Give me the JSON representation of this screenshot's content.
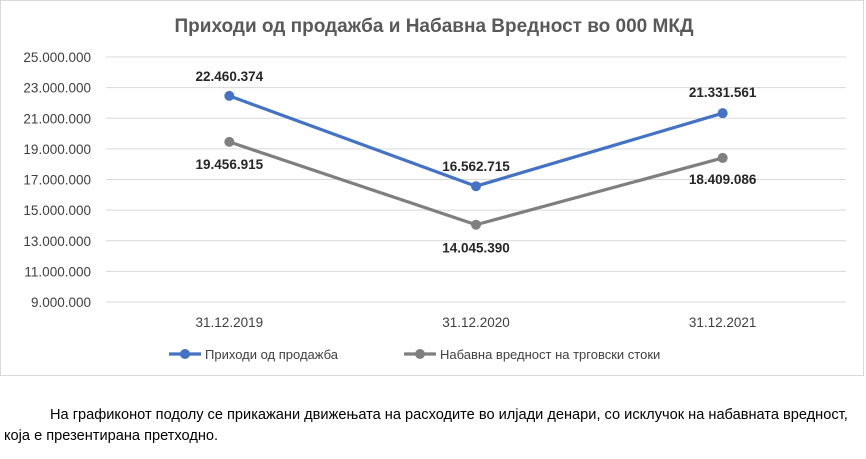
{
  "chart_data": {
    "type": "line",
    "title": "Приходи од продажба и Набавна Вредност во 000 МКД",
    "categories": [
      "31.12.2019",
      "31.12.2020",
      "31.12.2021"
    ],
    "series": [
      {
        "name": "Приходи од продажба",
        "color": "#4472C4",
        "values": [
          22460374,
          16562715,
          21331561
        ],
        "labels": [
          "22.460.374",
          "16.562.715",
          "21.331.561"
        ]
      },
      {
        "name": "Набавна вредност на трговски стоки",
        "color": "#7F7F7F",
        "values": [
          19456915,
          14045390,
          18409086
        ],
        "labels": [
          "19.456.915",
          "14.045.390",
          "18.409.086"
        ]
      }
    ],
    "ylim": [
      9000000,
      25000000
    ],
    "yticks": [
      "25.000.000",
      "23.000.000",
      "21.000.000",
      "19.000.000",
      "17.000.000",
      "15.000.000",
      "13.000.000",
      "11.000.000",
      "9.000.000"
    ],
    "grid": true,
    "legend_position": "bottom"
  },
  "paragraph": "На графиконот подолу се прикажани движењата на расходите во илјади денари, со исклучок на набавната вредност, која е презентирана претходно."
}
